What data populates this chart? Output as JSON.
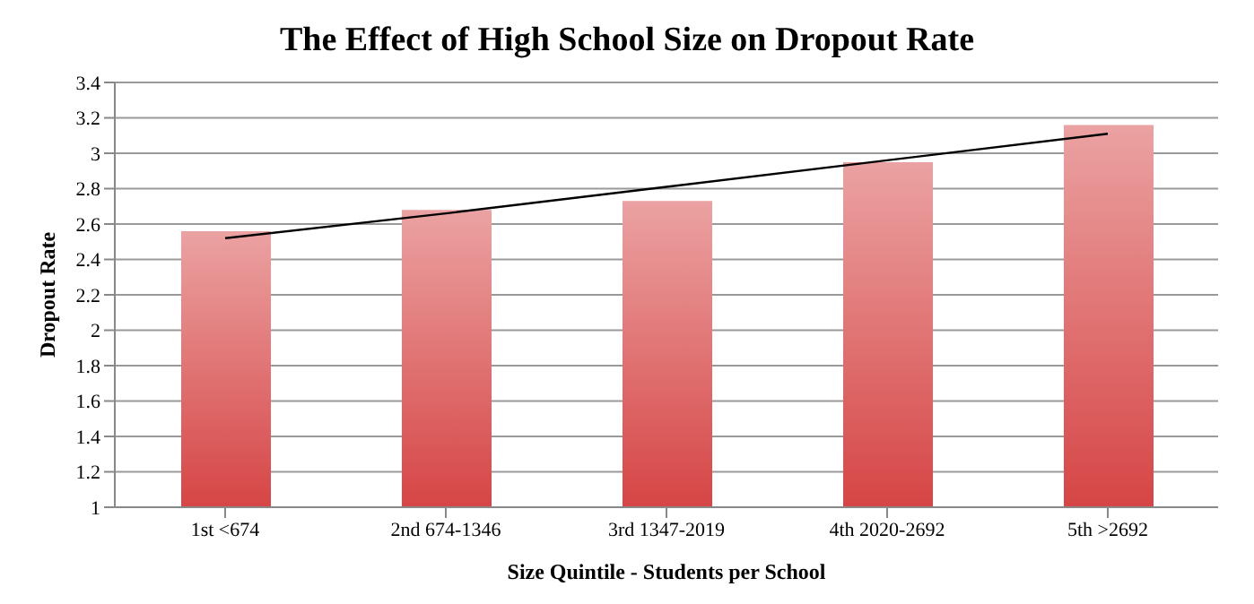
{
  "chart_data": {
    "type": "bar",
    "title": "The Effect of High School Size on Dropout Rate",
    "xlabel": "Size Quintile - Students per School",
    "ylabel": "Dropout Rate",
    "categories": [
      "1st <674",
      "2nd 674-1346",
      "3rd 1347-2019",
      "4th 2020-2692",
      "5th >2692"
    ],
    "series": [
      {
        "color": "#d64545",
        "values": [
          2.56,
          2.68,
          2.73,
          2.95,
          3.16
        ]
      },
      {
        "type": "line",
        "color": "#000000",
        "x": [
          "1st <674",
          "2nd 674-1346",
          "3rd 1347-2019",
          "4th 2020-2692",
          "5th >2692"
        ],
        "values": [
          2.52,
          2.66,
          2.81,
          2.96,
          3.11
        ]
      }
    ],
    "ylim": [
      1,
      3.4
    ],
    "yticks": [
      1,
      1.2,
      1.4,
      1.6,
      1.8,
      2,
      2.2,
      2.4,
      2.6,
      2.8,
      3,
      3.2,
      3.4
    ],
    "grid": "y",
    "legend": false,
    "marker": "none",
    "line_style": "solid"
  }
}
